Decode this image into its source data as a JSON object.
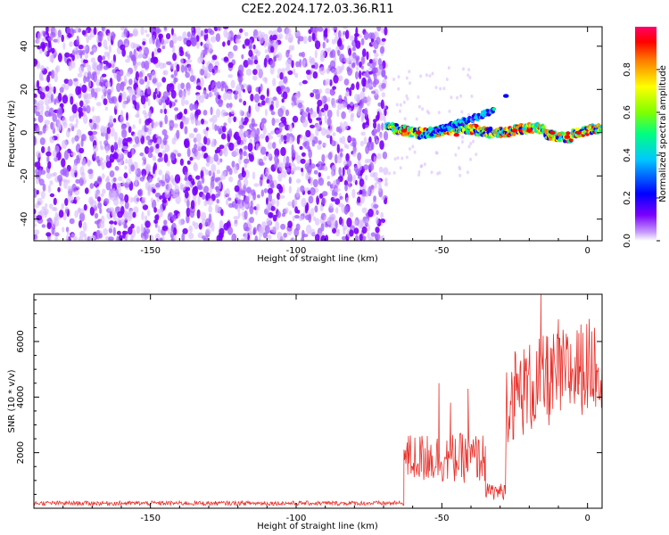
{
  "figure_title": "C2E2.2024.172.03.36.R11",
  "chart_data": [
    {
      "type": "heatmap",
      "title": "C2E2.2024.172.03.36.R11",
      "xlabel": "Height of straight line (km)",
      "ylabel": "Frequency (Hz)",
      "xlim": [
        -190,
        5
      ],
      "ylim": [
        -50,
        49
      ],
      "x_ticks": [
        -150,
        -100,
        -50,
        0
      ],
      "y_ticks": [
        -40,
        -20,
        0,
        20,
        40
      ],
      "colorbar": {
        "label": "Normalized spectral amplitude",
        "range": [
          0,
          1
        ],
        "ticks": [
          "0.0",
          "0.2",
          "0.4",
          "0.6",
          "0.8"
        ],
        "colors": [
          "#ffffff",
          "#c79bff",
          "#7b00ff",
          "#0000ff",
          "#00c8ff",
          "#00ff80",
          "#80ff00",
          "#ffff00",
          "#ff8000",
          "#ff0000",
          "#ff0066"
        ]
      },
      "regions": [
        {
          "name": "noise",
          "x_range": [
            -190,
            -69
          ],
          "freq_range": [
            -50,
            49
          ],
          "amplitude": 0.05
        },
        {
          "name": "signal",
          "x_range": [
            -69,
            5
          ],
          "center_freq_hz": 1,
          "amplitude_peak": 0.9
        },
        {
          "name": "branch",
          "x_range": [
            -58,
            -32
          ],
          "freq_start_hz": -2,
          "freq_end_hz": 10,
          "amplitude_peak": 0.5
        }
      ]
    },
    {
      "type": "line",
      "xlabel": "Height of straight line (km)",
      "ylabel": "SNR (10 * v/v)",
      "xlim": [
        -190,
        5
      ],
      "ylim": [
        0,
        7700
      ],
      "x_ticks": [
        -150,
        -100,
        -50,
        0
      ],
      "y_ticks": [
        2000,
        4000,
        6000
      ],
      "series": [
        {
          "color": "#e8302a",
          "segments": [
            {
              "x": [
                -190,
                -63
              ],
              "baseline": 180,
              "noise": 80
            },
            {
              "x": [
                -63,
                -35
              ],
              "baseline": 1800,
              "noise": 900
            },
            {
              "x": [
                -35,
                -28
              ],
              "baseline": 600,
              "noise": 300
            },
            {
              "x": [
                -28,
                5
              ],
              "baseline": 4000,
              "noise": 1700
            }
          ],
          "peaks": [
            {
              "x": -55,
              "y": 2600
            },
            {
              "x": -51,
              "y": 4500
            },
            {
              "x": -47,
              "y": 3800
            },
            {
              "x": -41,
              "y": 4300
            },
            {
              "x": -25,
              "y": 3300
            },
            {
              "x": -21,
              "y": 5400
            },
            {
              "x": -16,
              "y": 7700
            },
            {
              "x": -14,
              "y": 6200
            },
            {
              "x": -10,
              "y": 6800
            },
            {
              "x": -3,
              "y": 6300
            },
            {
              "x": 3,
              "y": 5200
            }
          ]
        }
      ]
    }
  ]
}
